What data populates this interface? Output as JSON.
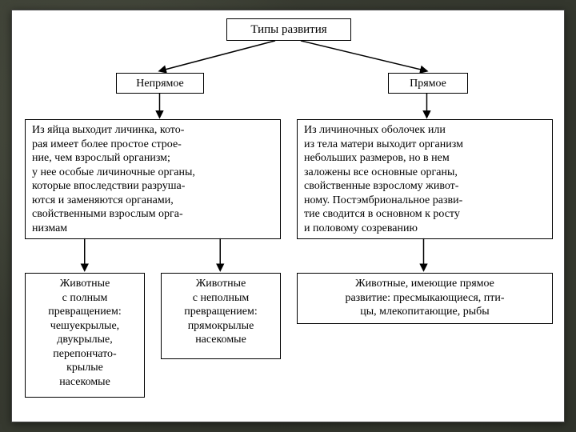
{
  "diagram": {
    "type": "flowchart",
    "background_color": "#ffffff",
    "border_color": "#000000",
    "font_family": "Georgia, 'Times New Roman', serif",
    "font_size": 14,
    "title_fontsize": 15,
    "nodes": {
      "root": {
        "text": "Типы развития"
      },
      "left": {
        "text": "Непрямое"
      },
      "right": {
        "text": "Прямое"
      },
      "left_desc": {
        "text": "Из яйца выходит личинка, кото-\nрая имеет более простое строе-\nние, чем взрослый организм;\nу нее особые личиночные органы,\nкоторые впоследствии разруша-\nются и заменяются органами,\nсвойственными взрослым орга-\nнизмам"
      },
      "right_desc": {
        "text": "Из личиночных оболочек или\nиз тела матери выходит организм\nнебольших размеров, но в нем\nзаложены все основные органы,\nсвойственные взрослому живот-\nному. Постэмбриональное разви-\nтие сводится в основном к росту\nи половому созреванию"
      },
      "left_sub1": {
        "text": "Животные\nс полным\nпревращением:\nчешуекрылые,\nдвукрылые,\nперепончато-\nкрылые\nнасекомые"
      },
      "left_sub2": {
        "text": "Животные\nс неполным\nпревращением:\nпрямокрылые\nнасекомые"
      },
      "right_sub": {
        "text": "Животные, имеющие прямое\nразвитие: пресмыкающиеся, пти-\nцы, млекопитающие, рыбы"
      }
    },
    "edges": [
      {
        "from": "root",
        "to": "left"
      },
      {
        "from": "root",
        "to": "right"
      },
      {
        "from": "left",
        "to": "left_desc"
      },
      {
        "from": "right",
        "to": "right_desc"
      },
      {
        "from": "left_desc",
        "to": "left_sub1"
      },
      {
        "from": "left_desc",
        "to": "left_sub2"
      },
      {
        "from": "right_desc",
        "to": "right_sub"
      }
    ],
    "arrow": {
      "stroke": "#000000",
      "stroke_width": 1.5,
      "head_size": 7
    }
  }
}
